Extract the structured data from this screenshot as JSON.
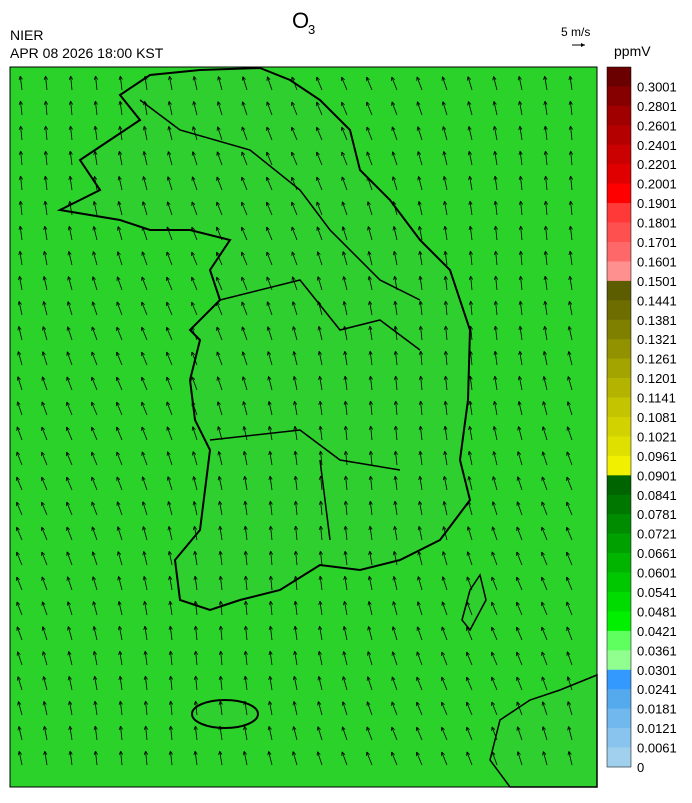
{
  "header": {
    "title": {
      "base": "O",
      "sub": "3"
    },
    "agency": "NIER",
    "datetime": "APR 08 2026 18:00 KST",
    "wind_scale": "5 m/s"
  },
  "colorbar": {
    "unit": "ppmV",
    "labels": [
      0.3001,
      0.2801,
      0.2601,
      0.2401,
      0.2201,
      0.2001,
      0.1901,
      0.1801,
      0.1701,
      0.1601,
      0.1501,
      0.1441,
      0.1381,
      0.1321,
      0.1261,
      0.1201,
      0.1141,
      0.1081,
      0.1021,
      0.0961,
      0.0901,
      0.0841,
      0.0781,
      0.0721,
      0.0661,
      0.0601,
      0.0541,
      0.0481,
      0.0421,
      0.0361,
      0.0301,
      0.0241,
      0.0181,
      0.0121,
      0.0061,
      0
    ],
    "colors": [
      "#6a0000",
      "#870000",
      "#a00000",
      "#b50000",
      "#cb0000",
      "#e00000",
      "#ff0000",
      "#ff3838",
      "#ff5050",
      "#ff6868",
      "#ff9090",
      "#5c5c00",
      "#6e6e00",
      "#808000",
      "#929200",
      "#a4a400",
      "#b4b400",
      "#c4c400",
      "#d2d200",
      "#e0e000",
      "#f0f000",
      "#006400",
      "#007800",
      "#008c00",
      "#00a000",
      "#00b400",
      "#00c800",
      "#00dc00",
      "#00f000",
      "#60ff60",
      "#90ff90",
      "#3399ff",
      "#55aaee",
      "#70b8ee",
      "#88c4ee",
      "#a0d0ee"
    ]
  }
}
